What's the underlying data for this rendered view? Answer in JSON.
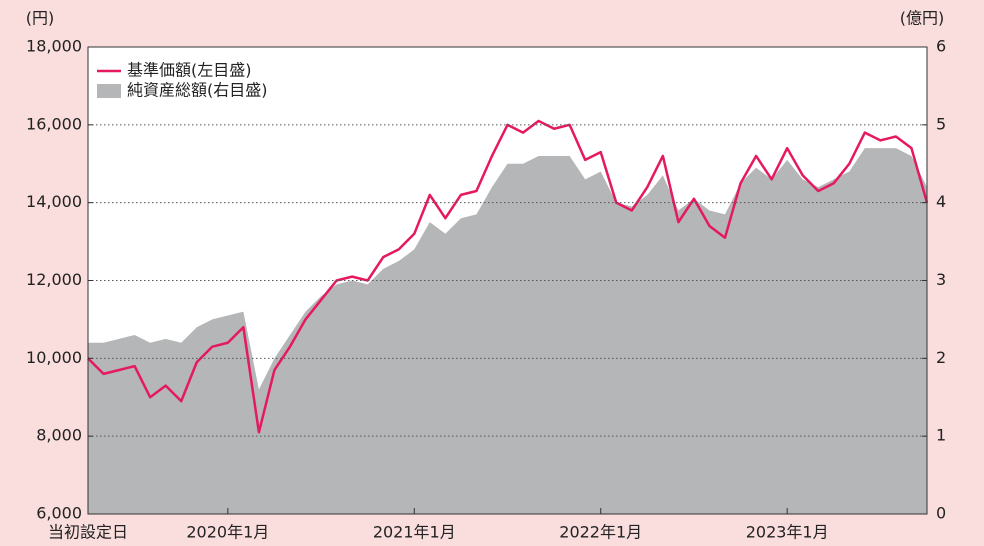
{
  "chart_data": {
    "type": "line",
    "y_unit_label": "(円)",
    "y2_unit_label": "(億円)",
    "x": [
      "2019-04",
      "2019-05",
      "2019-06",
      "2019-07",
      "2019-08",
      "2019-09",
      "2019-10",
      "2019-11",
      "2019-12",
      "2020-01",
      "2020-02",
      "2020-03",
      "2020-04",
      "2020-05",
      "2020-06",
      "2020-07",
      "2020-08",
      "2020-09",
      "2020-10",
      "2020-11",
      "2020-12",
      "2021-01",
      "2021-02",
      "2021-03",
      "2021-04",
      "2021-05",
      "2021-06",
      "2021-07",
      "2021-08",
      "2021-09",
      "2021-10",
      "2021-11",
      "2021-12",
      "2022-01",
      "2022-02",
      "2022-03",
      "2022-04",
      "2022-05",
      "2022-06",
      "2022-07",
      "2022-08",
      "2022-09",
      "2022-10",
      "2022-11",
      "2022-12",
      "2023-01",
      "2023-02",
      "2023-03",
      "2023-04",
      "2023-05",
      "2023-06",
      "2023-07",
      "2023-08",
      "2023-09",
      "2023-10"
    ],
    "series": [
      {
        "name": "基準価額(左目盛)",
        "color": "#e5195f",
        "type": "line",
        "values": [
          10000,
          9600,
          9700,
          9800,
          9000,
          9300,
          8900,
          9900,
          10300,
          10400,
          10800,
          8100,
          9700,
          10300,
          11000,
          11500,
          12000,
          12100,
          12000,
          12600,
          12800,
          13200,
          14200,
          13600,
          14200,
          14300,
          15200,
          16000,
          15800,
          16100,
          15900,
          16000,
          15100,
          15300,
          14000,
          13800,
          14400,
          15200,
          13500,
          14100,
          13400,
          13100,
          14500,
          15200,
          14600,
          15400,
          14700,
          14300,
          14500,
          15000,
          15800,
          15600,
          15700,
          15400,
          14000
        ]
      },
      {
        "name": "純資産総額(右目盛)",
        "color": "#b5b6b7",
        "type": "area",
        "axis": "y2",
        "values": [
          2.2,
          2.2,
          2.25,
          2.3,
          2.2,
          2.25,
          2.2,
          2.4,
          2.5,
          2.55,
          2.6,
          1.6,
          2.0,
          2.3,
          2.6,
          2.8,
          2.95,
          3.0,
          2.95,
          3.15,
          3.25,
          3.4,
          3.75,
          3.6,
          3.8,
          3.85,
          4.2,
          4.5,
          4.5,
          4.6,
          4.6,
          4.6,
          4.3,
          4.4,
          4.0,
          3.95,
          4.1,
          4.35,
          3.9,
          4.05,
          3.9,
          3.85,
          4.25,
          4.45,
          4.3,
          4.55,
          4.3,
          4.2,
          4.3,
          4.4,
          4.7,
          4.7,
          4.7,
          4.6,
          4.2
        ]
      }
    ],
    "xlim": [
      "2019-04",
      "2023-10"
    ],
    "xticks": [
      {
        "value": "2019-04",
        "label": "当初設定日"
      },
      {
        "value": "2020-01",
        "label": "2020年1月"
      },
      {
        "value": "2021-01",
        "label": "2021年1月"
      },
      {
        "value": "2022-01",
        "label": "2022年1月"
      },
      {
        "value": "2023-01",
        "label": "2023年1月"
      }
    ],
    "ylim": [
      6000,
      18000
    ],
    "yticks": [
      {
        "value": 6000,
        "label": "6,000"
      },
      {
        "value": 8000,
        "label": "8,000"
      },
      {
        "value": 10000,
        "label": "10,000"
      },
      {
        "value": 12000,
        "label": "12,000"
      },
      {
        "value": 14000,
        "label": "14,000"
      },
      {
        "value": 16000,
        "label": "16,000"
      },
      {
        "value": 18000,
        "label": "18,000"
      }
    ],
    "y2lim": [
      0,
      6
    ],
    "y2ticks": [
      0,
      1,
      2,
      3,
      4,
      5,
      6
    ],
    "grid": true,
    "legend": "upper left"
  }
}
